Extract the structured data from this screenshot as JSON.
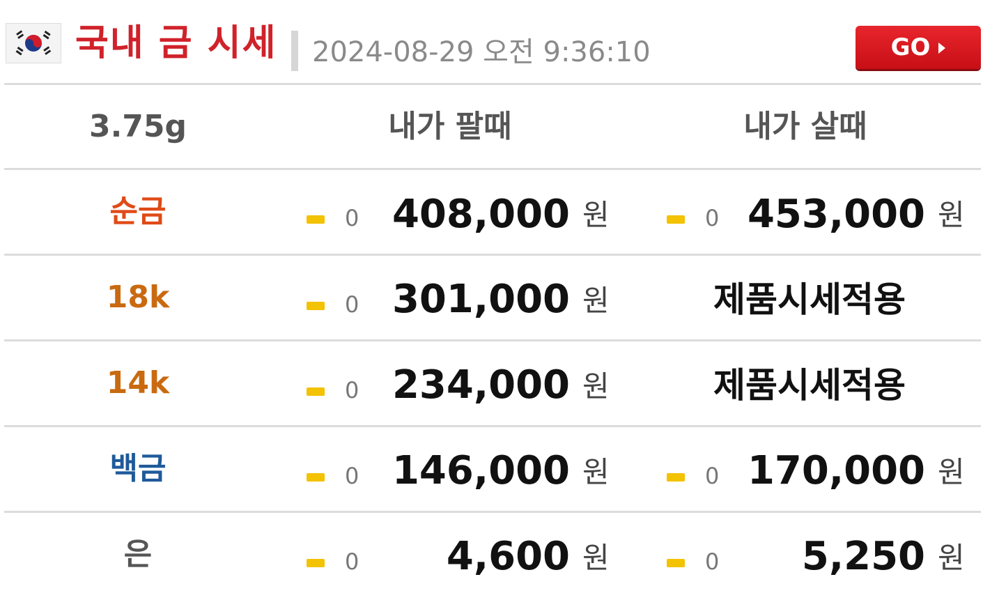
{
  "header": {
    "title": "국내 금 시세",
    "timestamp": "2024-08-29 오전 9:36:10",
    "go_label": "GO",
    "flag_icon": "south-korea-flag-icon"
  },
  "table": {
    "unit_label": "3.75g",
    "sell_header": "내가 팔때",
    "buy_header": "내가 살때",
    "currency": "원",
    "rows": [
      {
        "label": "순금",
        "label_color": "#e04a16",
        "sell_change": "0",
        "sell_price": "408,000",
        "buy_change": "0",
        "buy_price": "453,000",
        "buy_note": ""
      },
      {
        "label": "18k",
        "label_color": "#c96a10",
        "sell_change": "0",
        "sell_price": "301,000",
        "buy_change": "",
        "buy_price": "",
        "buy_note": "제품시세적용"
      },
      {
        "label": "14k",
        "label_color": "#c96a10",
        "sell_change": "0",
        "sell_price": "234,000",
        "buy_change": "",
        "buy_price": "",
        "buy_note": "제품시세적용"
      },
      {
        "label": "백금",
        "label_color": "#1f5a9a",
        "sell_change": "0",
        "sell_price": "146,000",
        "buy_change": "0",
        "buy_price": "170,000",
        "buy_note": ""
      },
      {
        "label": "은",
        "label_color": "#555555",
        "sell_change": "0",
        "sell_price": "4,600",
        "buy_change": "0",
        "buy_price": "5,250",
        "buy_note": ""
      }
    ]
  },
  "colors": {
    "title_red": "#d0222a",
    "go_button_red": "#d8161e",
    "change_bar_yellow": "#f3c200",
    "divider": "#dcdcdc"
  }
}
